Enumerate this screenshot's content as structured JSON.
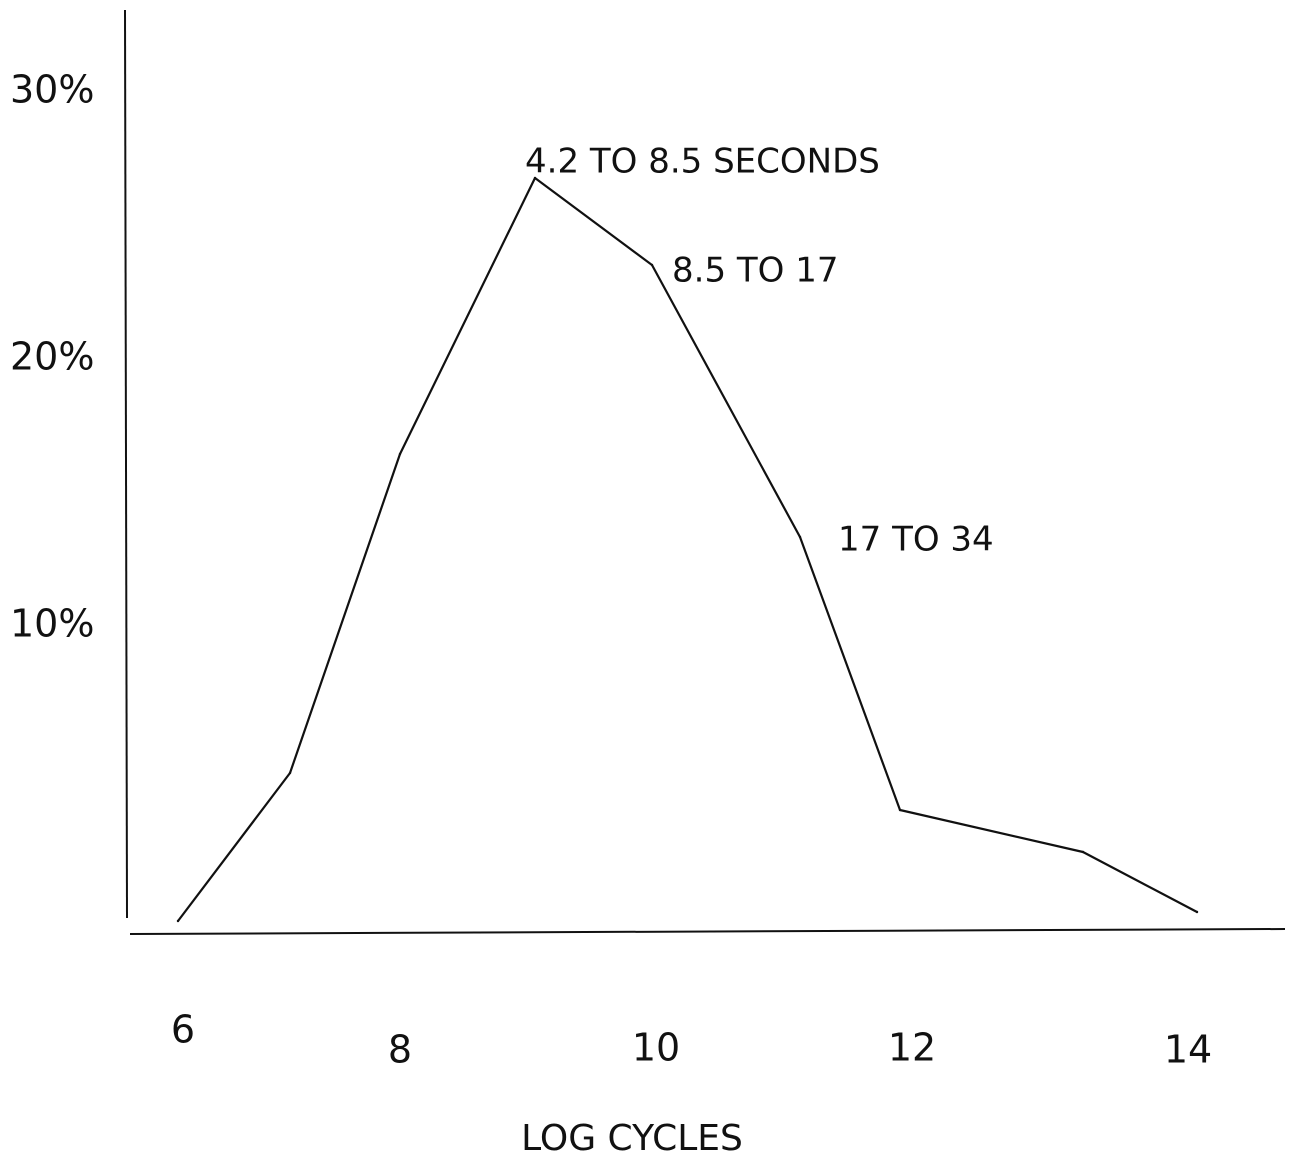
{
  "chart_data": {
    "type": "line",
    "title": "",
    "xlabel": "LOG CYCLES",
    "ylabel": "",
    "x_ticks": [
      {
        "value": 6,
        "label": "6"
      },
      {
        "value": 8,
        "label": "8"
      },
      {
        "value": 10,
        "label": "10"
      },
      {
        "value": 12,
        "label": "12"
      },
      {
        "value": 14,
        "label": "14"
      }
    ],
    "y_ticks": [
      {
        "value": 10,
        "label": "10%"
      },
      {
        "value": 20,
        "label": "20%"
      },
      {
        "value": 30,
        "label": "30%"
      }
    ],
    "xlim": [
      5.0,
      14.5
    ],
    "ylim": [
      -2,
      33
    ],
    "series": [
      {
        "x": [
          6.0,
          6.9,
          7.8,
          8.7,
          9.6,
          10.3,
          11.2,
          12.3,
          13.2
        ],
        "y": [
          0.3,
          5.6,
          16.4,
          25.7,
          22.9,
          13.8,
          4.4,
          2.9,
          0.6
        ]
      }
    ],
    "annotations": [
      {
        "text": "4.2 TO 8.5 SECONDS",
        "x": 8.7,
        "y": 25.7
      },
      {
        "text": "8.5 TO 17",
        "x": 9.6,
        "y": 22.9
      },
      {
        "text": "17 TO 34",
        "x": 10.3,
        "y": 13.8
      }
    ],
    "grid": false,
    "legend": "none",
    "line_color": "#111111",
    "axis_color": "#111111"
  }
}
